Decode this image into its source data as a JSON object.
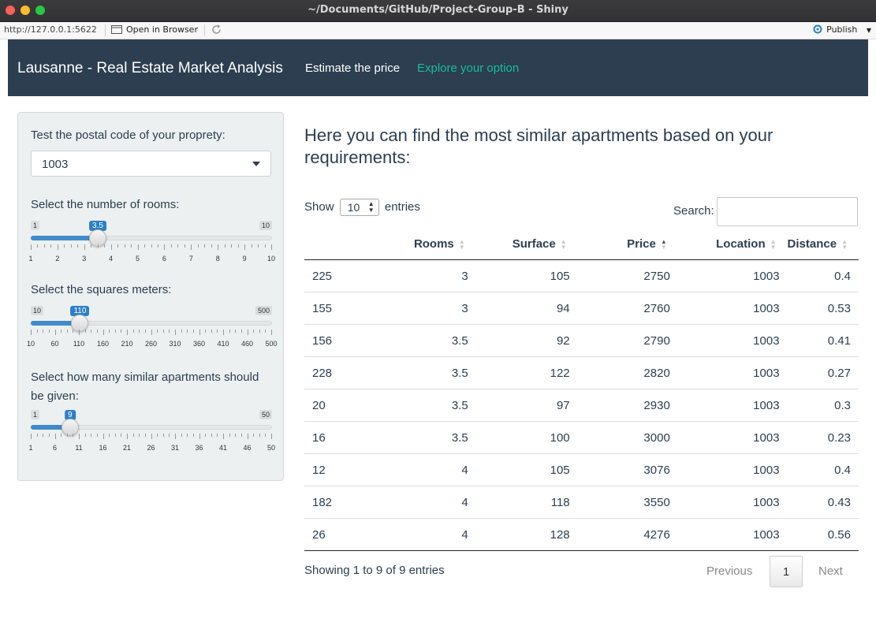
{
  "window": {
    "title": "~/Documents/GitHub/Project-Group-B - Shiny"
  },
  "viewer": {
    "url": "http://127.0.0.1:5622",
    "open_browser": "Open in Browser",
    "publish": "Publish"
  },
  "navbar": {
    "brand": "Lausanne - Real Estate Market Analysis",
    "tabs": [
      {
        "label": "Estimate the price",
        "active": false
      },
      {
        "label": "Explore your option",
        "active": true
      }
    ],
    "colors": {
      "background": "#2c3e50",
      "active_link": "#18bc9c"
    }
  },
  "sidebar": {
    "postal": {
      "label": "Test the postal code of your proprety:",
      "value": "1003"
    },
    "rooms": {
      "label": "Select the number of rooms:",
      "min": 1,
      "max": 10,
      "value": 3.5,
      "ticks": [
        "1",
        "2",
        "3",
        "4",
        "5",
        "6",
        "7",
        "8",
        "9",
        "10"
      ]
    },
    "surface": {
      "label": "Select the squares meters:",
      "min": 10,
      "max": 500,
      "value": 110,
      "ticks": [
        "10",
        "60",
        "110",
        "160",
        "210",
        "260",
        "310",
        "360",
        "410",
        "460",
        "500"
      ]
    },
    "similar": {
      "label": "Select how many similar apartments should be given:",
      "min": 1,
      "max": 50,
      "value": 9,
      "ticks": [
        "1",
        "6",
        "11",
        "16",
        "21",
        "26",
        "31",
        "36",
        "41",
        "46",
        "50"
      ]
    }
  },
  "main": {
    "heading": "Here you can find the most similar apartments based on your requirements:",
    "show_prefix": "Show",
    "page_length": "10",
    "show_suffix": "entries",
    "search_label": "Search:",
    "columns": [
      "",
      "Rooms",
      "Surface",
      "Price",
      "Location",
      "Distance"
    ],
    "sorted_column": "Price",
    "rows": [
      [
        "225",
        "3",
        "105",
        "2750",
        "1003",
        "0.4"
      ],
      [
        "155",
        "3",
        "94",
        "2760",
        "1003",
        "0.53"
      ],
      [
        "156",
        "3.5",
        "92",
        "2790",
        "1003",
        "0.41"
      ],
      [
        "228",
        "3.5",
        "122",
        "2820",
        "1003",
        "0.27"
      ],
      [
        "20",
        "3.5",
        "97",
        "2930",
        "1003",
        "0.3"
      ],
      [
        "16",
        "3.5",
        "100",
        "3000",
        "1003",
        "0.23"
      ],
      [
        "12",
        "4",
        "105",
        "3076",
        "1003",
        "0.4"
      ],
      [
        "182",
        "4",
        "118",
        "3550",
        "1003",
        "0.43"
      ],
      [
        "26",
        "4",
        "128",
        "4276",
        "1003",
        "0.56"
      ]
    ],
    "info": "Showing 1 to 9 of 9 entries",
    "pager": {
      "previous": "Previous",
      "current": "1",
      "next": "Next"
    }
  }
}
